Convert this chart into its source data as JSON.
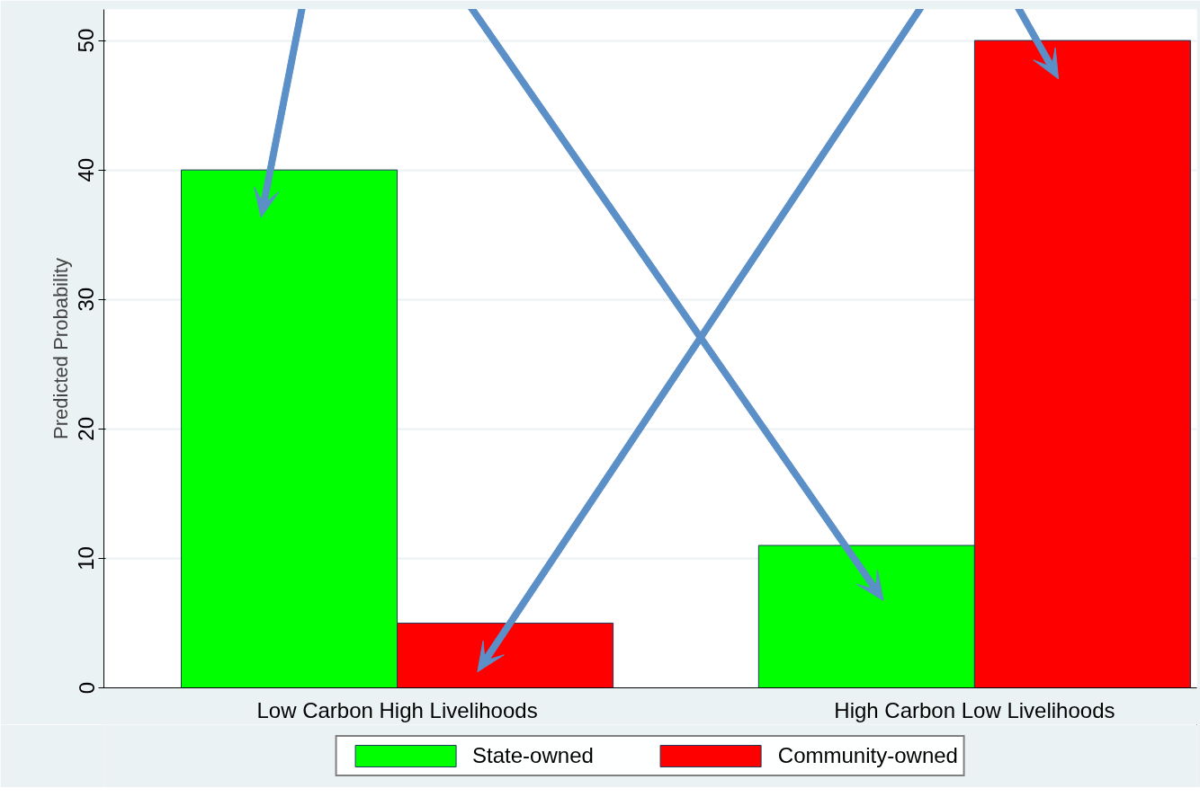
{
  "chart_data": {
    "type": "bar",
    "ylabel": "Predicted Probability",
    "categories": [
      "Low Carbon High Livelihoods",
      "High Carbon Low Livelihoods"
    ],
    "series": [
      {
        "name": "State-owned",
        "color": "#00ff00",
        "values": [
          40,
          11
        ]
      },
      {
        "name": "Community-owned",
        "color": "#ff0000",
        "values": [
          5,
          50
        ]
      }
    ],
    "ylim": [
      0,
      52.4
    ],
    "yticks": [
      0,
      10,
      20,
      30,
      40,
      50
    ],
    "grid": "y",
    "legend": "bottom"
  }
}
